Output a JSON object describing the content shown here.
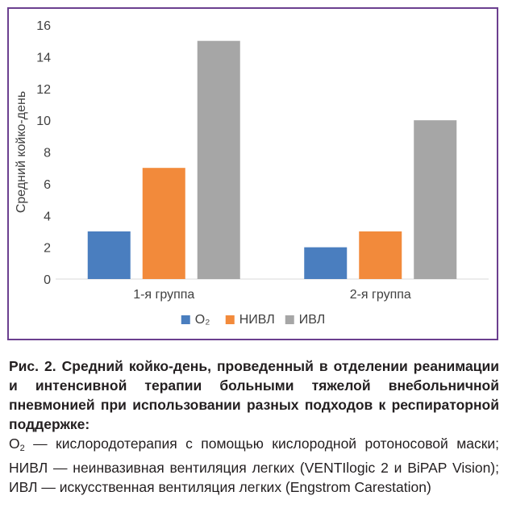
{
  "chart_data": {
    "type": "bar",
    "ylabel": "Средний койко-день",
    "xlabel": "",
    "categories": [
      "1-я группа",
      "2-я группа"
    ],
    "series": [
      {
        "name": "O₂",
        "values": [
          3,
          2
        ],
        "color": "#4a7ebf"
      },
      {
        "name": "НИВЛ",
        "values": [
          7,
          3
        ],
        "color": "#f28a3b"
      },
      {
        "name": "ИВЛ",
        "values": [
          15,
          10
        ],
        "color": "#a6a6a6"
      }
    ],
    "ylim": [
      0,
      16
    ],
    "yticks": [
      0,
      2,
      4,
      6,
      8,
      10,
      12,
      14,
      16
    ],
    "grid": false,
    "legend": "bottom",
    "frame_color": "#6b3f8f"
  },
  "caption": {
    "title": "Рис. 2. Средний койко-день, проведенный в отделении реанимации и интенсивной терапии больными тяжелой внебольничной пневмонией при использовании разных подходов к респираторной поддержке:",
    "o2_base": "O",
    "o2_sub": "2",
    "body": " — кислородотерапия с помощью кислородной ротоносовой маски; НИВЛ — неинвазивная вентиляция легких (VENTIlogic 2 и BiPAP Vision); ИВЛ — искусственная вентиляция легких (Engstrom Carestation)"
  }
}
